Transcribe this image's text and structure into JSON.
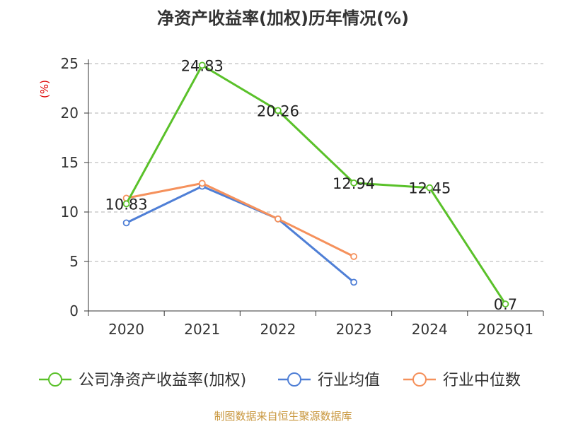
{
  "title": "净资产收益率(加权)历年情况(%)",
  "source": "制图数据来自恒生聚源数据库",
  "chart_data": {
    "type": "line",
    "title": "净资产收益率(加权)历年情况(%)",
    "ylabel": "(%)",
    "xlabel": "",
    "categories": [
      "2020",
      "2021",
      "2022",
      "2023",
      "2024",
      "2025Q1"
    ],
    "ylim": [
      0,
      25
    ],
    "yticks": [
      0,
      5,
      10,
      15,
      20,
      25
    ],
    "grid": "horizontal-dashed",
    "legend_position": "bottom",
    "series": [
      {
        "name": "公司净资产收益率(加权)",
        "color": "#5ac12a",
        "values": [
          10.83,
          24.83,
          20.26,
          12.94,
          12.45,
          0.7
        ],
        "labels": [
          "10.83",
          "24.83",
          "20.26",
          "12.94",
          "12.45",
          "0.7"
        ]
      },
      {
        "name": "行业均值",
        "color": "#4f7fd6",
        "values": [
          8.9,
          12.6,
          9.3,
          2.9,
          null,
          null
        ],
        "labels": null
      },
      {
        "name": "行业中位数",
        "color": "#f5915c",
        "values": [
          11.4,
          12.9,
          9.3,
          5.5,
          null,
          null
        ],
        "labels": null
      }
    ]
  }
}
